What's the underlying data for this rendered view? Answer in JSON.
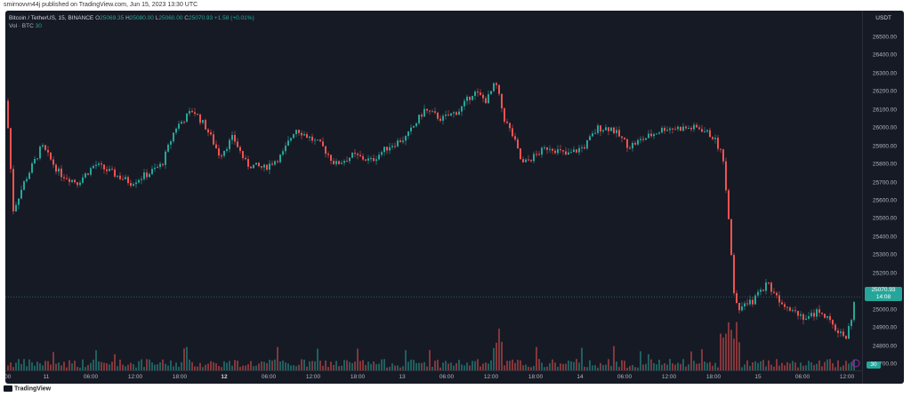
{
  "header": {
    "publish_text": "smirnovvn44j published on TradingView.com, Jun 15, 2023 13:30 UTC"
  },
  "legend": {
    "symbol": "Bitcoin / TetherUS, 15, BINANCE",
    "o_label": "O",
    "o_value": "25069.35",
    "h_label": "H",
    "h_value": "25080.00",
    "l_label": "L",
    "l_value": "25060.00",
    "c_label": "C",
    "c_value": "25070.93",
    "change": "+1.58 (+0.01%)",
    "vol_label": "Vol · BTC",
    "vol_value": "30"
  },
  "axis": {
    "currency": "USDT",
    "y_ticks": [
      "26500.00",
      "26400.00",
      "26300.00",
      "26200.00",
      "26100.00",
      "26000.00",
      "25900.00",
      "25800.00",
      "25700.00",
      "25600.00",
      "25500.00",
      "25400.00",
      "25300.00",
      "25200.00",
      "25100.00",
      "25000.00",
      "24900.00",
      "24800.00",
      "24700.00"
    ],
    "x_ticks": [
      {
        "label": "8:00",
        "bold": false
      },
      {
        "label": "11",
        "bold": false
      },
      {
        "label": "06:00",
        "bold": false
      },
      {
        "label": "12:00",
        "bold": false
      },
      {
        "label": "18:00",
        "bold": false
      },
      {
        "label": "12",
        "bold": true
      },
      {
        "label": "06:00",
        "bold": false
      },
      {
        "label": "12:00",
        "bold": false
      },
      {
        "label": "18:00",
        "bold": false
      },
      {
        "label": "13",
        "bold": false
      },
      {
        "label": "06:00",
        "bold": false
      },
      {
        "label": "12:00",
        "bold": false
      },
      {
        "label": "18:00",
        "bold": false
      },
      {
        "label": "14",
        "bold": false
      },
      {
        "label": "06:00",
        "bold": false
      },
      {
        "label": "12:00",
        "bold": false
      },
      {
        "label": "18:00",
        "bold": false
      },
      {
        "label": "15",
        "bold": false
      },
      {
        "label": "06:00",
        "bold": false
      },
      {
        "label": "12:00",
        "bold": false
      }
    ],
    "price_label": "25070.93",
    "countdown": "14:08",
    "vol_label": "30"
  },
  "footer": {
    "brand": "TradingView"
  },
  "colors": {
    "up": "#26a69a",
    "down": "#ef5350",
    "background": "#161a25"
  },
  "chart_data": {
    "type": "candlestick",
    "title": "Bitcoin / TetherUS, 15, BINANCE",
    "ylim": [
      24650,
      26600
    ],
    "close_path": [
      [
        0,
        26150
      ],
      [
        8,
        25550
      ],
      [
        20,
        25700
      ],
      [
        40,
        25900
      ],
      [
        60,
        25750
      ],
      [
        80,
        25700
      ],
      [
        100,
        25800
      ],
      [
        120,
        25750
      ],
      [
        140,
        25700
      ],
      [
        160,
        25750
      ],
      [
        175,
        25800
      ],
      [
        190,
        26000
      ],
      [
        210,
        26100
      ],
      [
        225,
        26000
      ],
      [
        240,
        25850
      ],
      [
        255,
        25950
      ],
      [
        270,
        25800
      ],
      [
        290,
        25780
      ],
      [
        310,
        25850
      ],
      [
        325,
        26000
      ],
      [
        340,
        25950
      ],
      [
        355,
        25900
      ],
      [
        370,
        25800
      ],
      [
        390,
        25850
      ],
      [
        410,
        25820
      ],
      [
        430,
        25900
      ],
      [
        450,
        25950
      ],
      [
        470,
        26100
      ],
      [
        490,
        26050
      ],
      [
        510,
        26100
      ],
      [
        525,
        26200
      ],
      [
        540,
        26150
      ],
      [
        550,
        26250
      ],
      [
        560,
        26050
      ],
      [
        570,
        25950
      ],
      [
        580,
        25800
      ],
      [
        595,
        25850
      ],
      [
        610,
        25900
      ],
      [
        630,
        25850
      ],
      [
        650,
        25900
      ],
      [
        665,
        26000
      ],
      [
        680,
        26000
      ],
      [
        700,
        25900
      ],
      [
        720,
        25950
      ],
      [
        740,
        26000
      ],
      [
        760,
        26000
      ],
      [
        780,
        26000
      ],
      [
        795,
        25950
      ],
      [
        805,
        25850
      ],
      [
        812,
        25500
      ],
      [
        818,
        25100
      ],
      [
        825,
        25000
      ],
      [
        840,
        25050
      ],
      [
        855,
        25150
      ],
      [
        870,
        25050
      ],
      [
        885,
        25000
      ],
      [
        900,
        24950
      ],
      [
        915,
        25000
      ],
      [
        930,
        24900
      ],
      [
        945,
        24850
      ],
      [
        955,
        25070
      ]
    ]
  }
}
